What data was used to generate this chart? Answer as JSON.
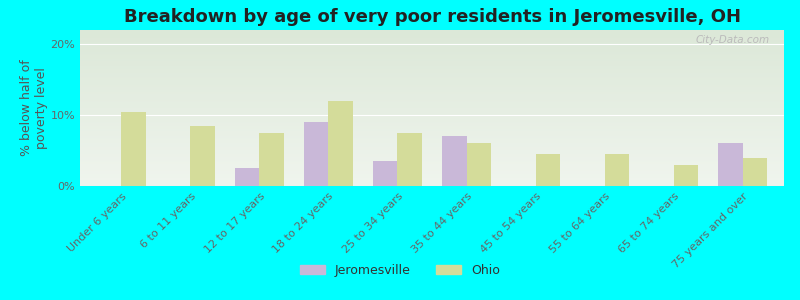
{
  "title": "Breakdown by age of very poor residents in Jeromesville, OH",
  "ylabel": "% below half of\npoverty level",
  "categories": [
    "Under 6 years",
    "6 to 11 years",
    "12 to 17 years",
    "18 to 24 years",
    "25 to 34 years",
    "35 to 44 years",
    "45 to 54 years",
    "55 to 64 years",
    "65 to 74 years",
    "75 years and over"
  ],
  "jeromesville": [
    0,
    0,
    2.5,
    9.0,
    3.5,
    7.0,
    0,
    0,
    0,
    6.0
  ],
  "ohio": [
    10.5,
    8.5,
    7.5,
    12.0,
    7.5,
    6.0,
    4.5,
    4.5,
    3.0,
    4.0
  ],
  "jeromesville_color": "#c9b8d8",
  "ohio_color": "#d4dc9a",
  "background_outer": "#00ffff",
  "background_plot_top": "#dce8d8",
  "background_plot_bottom": "#f0f5ee",
  "ylim": [
    0,
    22
  ],
  "yticks": [
    0,
    10,
    20
  ],
  "ytick_labels": [
    "0%",
    "10%",
    "20%"
  ],
  "bar_width": 0.35,
  "title_fontsize": 13,
  "axis_label_fontsize": 9,
  "tick_fontsize": 8,
  "legend_fontsize": 9,
  "watermark": "City-Data.com"
}
